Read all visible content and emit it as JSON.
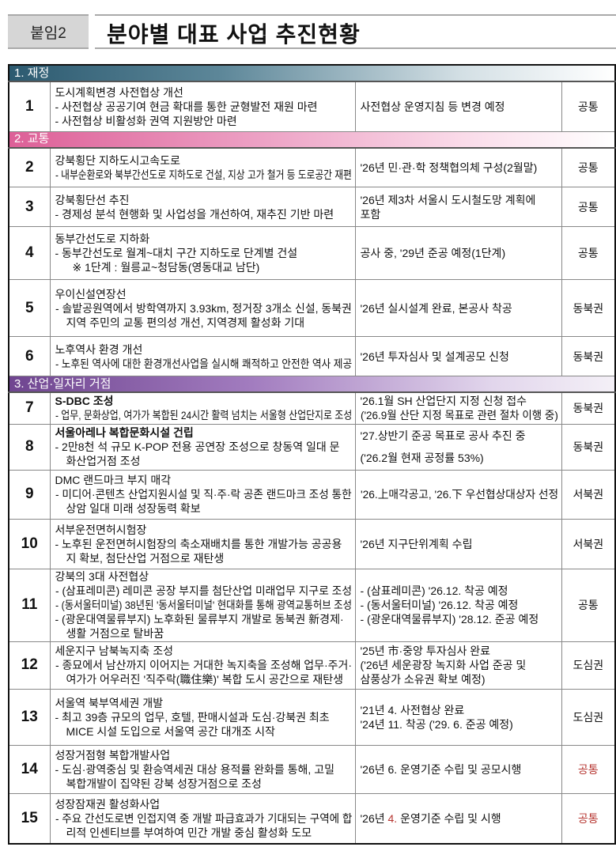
{
  "header": {
    "tag": "붙임2",
    "title": "분야별 대표 사업 추진현황"
  },
  "colors": {
    "section1": "#2c5a70",
    "section2": "#dd5f97",
    "section3": "#6f4590",
    "highlight_red": "#b5332e"
  },
  "sections": [
    {
      "title": "1. 재정",
      "rows": [
        {
          "no": "1",
          "desc": [
            {
              "text": "도시계획변경 사전협상 개선",
              "ind": 1
            },
            {
              "text": "- 사전협상 공공기여 현금 확대를 통한 균형발전 재원 마련",
              "ind": 1
            },
            {
              "text": "-  사전협상 비활성화 권역 지원방안 마련",
              "ind": 1
            }
          ],
          "status": [
            {
              "text": "사전협상 운영지침 등 변경 예정"
            }
          ],
          "region": "공통"
        }
      ]
    },
    {
      "title": "2. 교통",
      "rows": [
        {
          "no": "2",
          "desc": [
            {
              "text": "강북횡단 지하도시고속도로",
              "ind": 1
            },
            {
              "text": "- 내부순환로와 북부간선도로 지하도로 건설, 지상 고가 철거 등 도로공간 재편",
              "ind": 1
            }
          ],
          "status": [
            {
              "text": "'26년 민·관·학 정책협의체 구성(2월말)"
            }
          ],
          "region": "공통"
        },
        {
          "no": "3",
          "desc": [
            {
              "text": "강북횡단선 추진",
              "ind": 1
            },
            {
              "text": "- 경제성 분석 현행화 및 사업성을 개선하여, 재추진 기반 마련",
              "ind": 1
            }
          ],
          "status": [
            {
              "text": "'26년 제3차 서울시 도시철도망 계획에"
            },
            {
              "text": "포함"
            }
          ],
          "region": "공통"
        },
        {
          "no": "4",
          "desc": [
            {
              "text": "동부간선도로 지하화",
              "ind": 1
            },
            {
              "text": "- 동부간선도로 월계~대치 구간 지하도로 단계별 건설",
              "ind": 1
            },
            {
              "text": "※ 1단계 : 월릉교~청담동(영동대교 남단)",
              "ind": 3
            }
          ],
          "status": [
            {
              "text": "공사 중, '29년 준공 예정(1단계)"
            }
          ],
          "region": "공통"
        },
        {
          "no": "5",
          "desc": [
            {
              "text": "우이신설연장선",
              "ind": 1
            },
            {
              "text": "- 솔밭공원역에서 방학역까지 3.93km, 정거장 3개소 신설, 동북권",
              "ind": 1
            },
            {
              "text": "지역 주민의 교통 편의성 개선, 지역경제 활성화 기대",
              "ind": 2
            }
          ],
          "status": [
            {
              "text": "'26년 실시설계 완료, 본공사 착공"
            }
          ],
          "region": "동북권"
        },
        {
          "no": "6",
          "desc": [
            {
              "text": "노후역사 환경 개선",
              "ind": 1
            },
            {
              "text": "- 노후된 역사에 대한 환경개선사업을 실시해 쾌적하고 안전한 역사 제공",
              "ind": 1
            }
          ],
          "status": [
            {
              "text": "'26년 투자심사 및 설계공모 신청"
            }
          ],
          "region": "동북권"
        }
      ]
    },
    {
      "title": "3. 산업·일자리 거점",
      "rows": [
        {
          "no": "7",
          "desc": [
            {
              "text": "S-DBC 조성",
              "ind": 1,
              "bold": true
            },
            {
              "text": "- 업무, 문화상업, 여가가 복합된 24시간 활력 넘치는 서울형 산업단지로 조성",
              "ind": 1
            }
          ],
          "status": [
            {
              "text": "'26.1월 SH 산업단지 지정 신청 접수"
            },
            {
              "text": "('26.9월 산단 지정 목표로 관련 절차 이행 중)"
            }
          ],
          "region": "동북권"
        },
        {
          "no": "8",
          "desc": [
            {
              "text": "서울아레나 복합문화시설 건립",
              "ind": 1,
              "bold": true
            },
            {
              "text": "- 2만8천 석 규모 K-POP 전용 공연장 조성으로 창동역 일대 문",
              "ind": 1
            },
            {
              "text": "화산업거점 조성",
              "ind": 2
            }
          ],
          "status": [
            {
              "text": "'27.상반기 준공 목표로 공사 추진 중"
            },
            {
              "text": "('26.2월 현재 공정률 53%)"
            }
          ],
          "region": "동북권"
        },
        {
          "no": "9",
          "desc": [
            {
              "text": "DMC 랜드마크 부지 매각",
              "ind": 1
            },
            {
              "text": "- 미디어·콘텐츠 산업지원시설 및 직·주·락 공존 랜드마크 조성 통한",
              "ind": 1
            },
            {
              "text": "상암 일대 미래 성장동력 확보",
              "ind": 2
            }
          ],
          "status": [
            {
              "text": "'26.上매각공고, '26.下 우선협상대상자 선정"
            }
          ],
          "region": "서북권"
        },
        {
          "no": "10",
          "desc": [
            {
              "text": "서부운전면허시험장",
              "ind": 1
            },
            {
              "text": "- 노후된 운전면허시험장의 축소재배치를 통한 개발가능 공공용",
              "ind": 1
            },
            {
              "text": "지 확보, 첨단산업 거점으로 재탄생",
              "ind": 2
            }
          ],
          "status": [
            {
              "text": "'26년 지구단위계획 수립"
            }
          ],
          "region": "서북권"
        },
        {
          "no": "11",
          "desc": [
            {
              "text": "강북의 3대 사전협상",
              "ind": 1
            },
            {
              "text": "-  (삼표레미콘) 레미콘 공장 부지를 첨단산업 미래업무 지구로 조성",
              "ind": 1
            },
            {
              "text": "-  (동서울터미널) 38년된 '동서울터미널' 현대화를 통해 광역교통허브 조성",
              "ind": 1
            },
            {
              "text": "-  (광운대역물류부지) 노후화된 물류부지 개발로 동북권 新경제·",
              "ind": 1
            },
            {
              "text": "생활 거점으로 탈바꿈",
              "ind": 2
            }
          ],
          "status": [
            {
              "text": "-  (삼표레미콘) '26.12. 착공 예정"
            },
            {
              "text": "-  (동서울터미널) '26.12. 착공 예정"
            },
            {
              "text": "-  (광운대역물류부지) '28.12. 준공 예정"
            }
          ],
          "region": "공통"
        },
        {
          "no": "12",
          "desc": [
            {
              "text": "세운지구 남북녹지축 조성",
              "ind": 1
            },
            {
              "text": "-  종묘에서 남산까지 이어지는 거대한 녹지축을 조성해 업무·주거·",
              "ind": 1
            },
            {
              "text": "여가가 어우러진 '직주락(職住樂)' 복합 도시 공간으로 재탄생",
              "ind": 2
            }
          ],
          "status": [
            {
              "text": "'25년 市·중앙 투자심사 완료"
            },
            {
              "text": "('26년 세운광장 녹지화 사업 준공 및"
            },
            {
              "text": " 삼풍상가 소유권 확보 예정)"
            }
          ],
          "region": "도심권"
        },
        {
          "no": "13",
          "desc": [
            {
              "text": "서울역 북부역세권 개발",
              "ind": 1
            },
            {
              "text": "-  최고 39층 규모의 업무, 호텔, 판매시설과 도심·강북권 최초",
              "ind": 1
            },
            {
              "text": "MICE 시설 도입으로 서울역 공간 대개조 시작",
              "ind": 2
            }
          ],
          "status": [
            {
              "text": "'21년  4. 사전협상 완료"
            },
            {
              "text": "'24년 11. 착공 ('29. 6. 준공 예정)"
            }
          ],
          "region": "도심권"
        },
        {
          "no": "14",
          "desc": [
            {
              "text": "성장거점형 복합개발사업",
              "ind": 1
            },
            {
              "text": "-  도심·광역중심 및 환승역세권 대상 용적률 완화를 통해, 고밀",
              "ind": 1
            },
            {
              "text": "복합개발이 집약된 강북 성장거점으로 조성",
              "ind": 2
            }
          ],
          "status": [
            {
              "text": "'26년 6. 운영기준 수립 및 공모시행"
            }
          ],
          "region": "공통",
          "region_red": true
        },
        {
          "no": "15",
          "desc": [
            {
              "text": "성장잠재권 활성화사업",
              "ind": 1
            },
            {
              "text": "-  주요 간선도로변 인접지역 중 개발 파급효과가 기대되는 구역에 합",
              "ind": 1
            },
            {
              "text": "리적 인센티브를 부여하여 민간 개발 중심 활성화 도모",
              "ind": 2
            }
          ],
          "status": [
            {
              "parts": [
                "'26년 ",
                "4.",
                ", 운영기준 수립 및 시행"
              ]
            }
          ],
          "region": "공통",
          "region_red": true
        }
      ]
    }
  ]
}
